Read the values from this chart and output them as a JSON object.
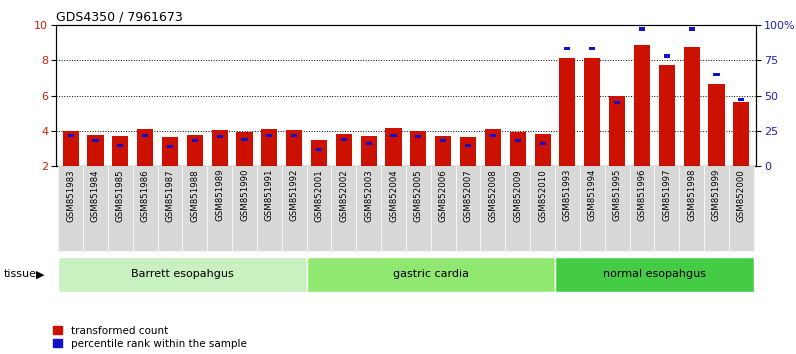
{
  "title": "GDS4350 / 7961673",
  "samples": [
    "GSM851983",
    "GSM851984",
    "GSM851985",
    "GSM851986",
    "GSM851987",
    "GSM851988",
    "GSM851989",
    "GSM851990",
    "GSM851991",
    "GSM851992",
    "GSM852001",
    "GSM852002",
    "GSM852003",
    "GSM852004",
    "GSM852005",
    "GSM852006",
    "GSM852007",
    "GSM852008",
    "GSM852009",
    "GSM852010",
    "GSM851993",
    "GSM851994",
    "GSM851995",
    "GSM851996",
    "GSM851997",
    "GSM851998",
    "GSM851999",
    "GSM852000"
  ],
  "red_values": [
    4.0,
    3.75,
    3.72,
    4.1,
    3.65,
    3.8,
    4.05,
    3.95,
    4.1,
    4.05,
    3.5,
    3.85,
    3.7,
    4.15,
    4.0,
    3.72,
    3.68,
    4.1,
    3.95,
    3.85,
    8.1,
    8.1,
    5.95,
    8.85,
    7.7,
    8.75,
    6.65,
    5.65
  ],
  "blue_percentiles": [
    22,
    18,
    15,
    22,
    14,
    18,
    21,
    19,
    22,
    22,
    12,
    19,
    16,
    22,
    21,
    18,
    15,
    22,
    18,
    16,
    83,
    83,
    45,
    97,
    78,
    97,
    65,
    47
  ],
  "groups": [
    {
      "label": "Barrett esopahgus",
      "start": 0,
      "end": 10,
      "color": "#c8f0c0"
    },
    {
      "label": "gastric cardia",
      "start": 10,
      "end": 20,
      "color": "#90e870"
    },
    {
      "label": "normal esopahgus",
      "start": 20,
      "end": 28,
      "color": "#44cc44"
    }
  ],
  "ylim_left": [
    2,
    10
  ],
  "ylim_right": [
    0,
    100
  ],
  "y_ticks_left": [
    2,
    4,
    6,
    8,
    10
  ],
  "y_ticks_right": [
    0,
    25,
    50,
    75,
    100
  ],
  "bar_color_red": "#cc1100",
  "bar_color_blue": "#1111cc",
  "bar_width": 0.65,
  "bg_color": "#ffffff",
  "legend_red": "transformed count",
  "legend_blue": "percentile rank within the sample",
  "tissue_label": "tissue",
  "ylabel_left_color": "#cc2200",
  "ylabel_right_color": "#2222bb",
  "tick_label_bg": "#d8d8d8",
  "dotted_lines": [
    4,
    6,
    8
  ]
}
